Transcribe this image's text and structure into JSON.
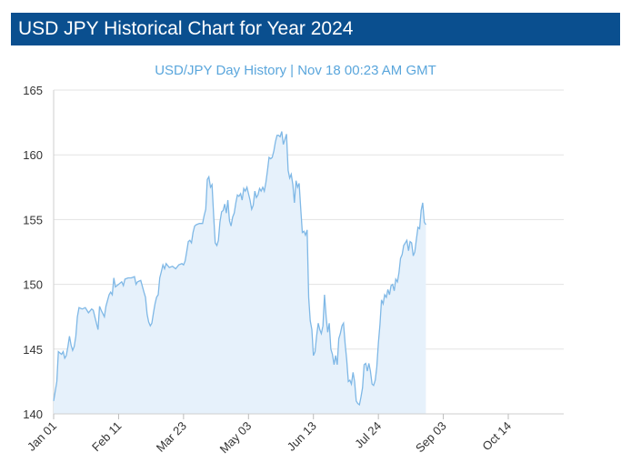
{
  "header": {
    "title": "USD JPY Historical Chart for Year 2024"
  },
  "colors": {
    "header_bg": "#0a4f8f",
    "line": "#7fb8e6",
    "fill": "#e6f1fb",
    "grid": "#e3e3e3",
    "subtitle": "#5aa6dc"
  },
  "chart_data": {
    "type": "area",
    "title": "USD/JPY  Day History | Nov 18 00:23 AM GMT",
    "xlabel": "",
    "ylabel": "",
    "ylim": [
      140,
      165
    ],
    "yticks": [
      140,
      145,
      150,
      155,
      160,
      165
    ],
    "xlim": [
      0,
      322
    ],
    "xticks": [
      {
        "label": "Jan 01",
        "day": 0
      },
      {
        "label": "Feb 11",
        "day": 41
      },
      {
        "label": "Mar 23",
        "day": 82
      },
      {
        "label": "May 03",
        "day": 123
      },
      {
        "label": "Jun 13",
        "day": 164
      },
      {
        "label": "Jul 24",
        "day": 205
      },
      {
        "label": "Sep 03",
        "day": 246
      },
      {
        "label": "Oct 14",
        "day": 287
      }
    ],
    "series": [
      {
        "name": "USD/JPY",
        "points": [
          [
            0,
            141.0
          ],
          [
            2,
            142.5
          ],
          [
            3,
            144.8
          ],
          [
            5,
            144.6
          ],
          [
            6,
            144.8
          ],
          [
            7,
            144.3
          ],
          [
            8,
            144.5
          ],
          [
            9,
            145.2
          ],
          [
            10,
            146.0
          ],
          [
            11,
            145.3
          ],
          [
            12,
            144.9
          ],
          [
            13,
            145.2
          ],
          [
            14,
            146.0
          ],
          [
            15,
            147.5
          ],
          [
            16,
            148.2
          ],
          [
            18,
            148.1
          ],
          [
            20,
            148.2
          ],
          [
            22,
            147.8
          ],
          [
            24,
            148.1
          ],
          [
            25,
            148.0
          ],
          [
            26,
            147.5
          ],
          [
            28,
            146.5
          ],
          [
            29,
            148.3
          ],
          [
            30,
            148.0
          ],
          [
            32,
            147.5
          ],
          [
            33,
            148.3
          ],
          [
            35,
            149.2
          ],
          [
            36,
            149.4
          ],
          [
            37,
            149.2
          ],
          [
            38,
            150.5
          ],
          [
            39,
            149.8
          ],
          [
            41,
            150.0
          ],
          [
            43,
            150.2
          ],
          [
            44,
            149.9
          ],
          [
            45,
            150.4
          ],
          [
            47,
            150.5
          ],
          [
            49,
            150.5
          ],
          [
            51,
            150.6
          ],
          [
            52,
            150.0
          ],
          [
            53,
            150.2
          ],
          [
            55,
            150.3
          ],
          [
            57,
            149.4
          ],
          [
            58,
            149.0
          ],
          [
            59,
            147.7
          ],
          [
            60,
            147.1
          ],
          [
            61,
            146.8
          ],
          [
            62,
            147.0
          ],
          [
            63,
            147.8
          ],
          [
            64,
            148.5
          ],
          [
            65,
            149.0
          ],
          [
            66,
            149.2
          ],
          [
            67,
            150.5
          ],
          [
            68,
            151.0
          ],
          [
            69,
            151.5
          ],
          [
            70,
            151.2
          ],
          [
            71,
            151.6
          ],
          [
            73,
            151.3
          ],
          [
            75,
            151.4
          ],
          [
            77,
            151.2
          ],
          [
            79,
            151.5
          ],
          [
            81,
            151.6
          ],
          [
            82,
            151.5
          ],
          [
            83,
            151.8
          ],
          [
            84,
            152.5
          ],
          [
            85,
            153.3
          ],
          [
            86,
            153.4
          ],
          [
            87,
            153.2
          ],
          [
            88,
            154.0
          ],
          [
            89,
            154.5
          ],
          [
            90,
            154.6
          ],
          [
            92,
            154.7
          ],
          [
            94,
            154.7
          ],
          [
            95,
            155.3
          ],
          [
            96,
            155.8
          ],
          [
            97,
            158.1
          ],
          [
            98,
            158.3
          ],
          [
            99,
            157.5
          ],
          [
            100,
            157.7
          ],
          [
            101,
            155.3
          ],
          [
            102,
            153.2
          ],
          [
            103,
            153.0
          ],
          [
            104,
            153.4
          ],
          [
            105,
            154.8
          ],
          [
            106,
            155.6
          ],
          [
            107,
            155.7
          ],
          [
            108,
            156.2
          ],
          [
            109,
            155.5
          ],
          [
            110,
            156.5
          ],
          [
            111,
            154.9
          ],
          [
            112,
            154.5
          ],
          [
            113,
            155.2
          ],
          [
            114,
            155.5
          ],
          [
            115,
            156.3
          ],
          [
            116,
            156.9
          ],
          [
            117,
            156.8
          ],
          [
            118,
            157.0
          ],
          [
            119,
            156.5
          ],
          [
            120,
            157.4
          ],
          [
            121,
            157.2
          ],
          [
            122,
            157.5
          ],
          [
            123,
            157.0
          ],
          [
            124,
            156.5
          ],
          [
            125,
            155.8
          ],
          [
            126,
            156.1
          ],
          [
            127,
            157.2
          ],
          [
            128,
            156.7
          ],
          [
            129,
            156.9
          ],
          [
            130,
            157.4
          ],
          [
            131,
            157.2
          ],
          [
            132,
            157.5
          ],
          [
            133,
            157.2
          ],
          [
            134,
            157.9
          ],
          [
            135,
            158.8
          ],
          [
            136,
            159.8
          ],
          [
            137,
            159.7
          ],
          [
            138,
            159.8
          ],
          [
            139,
            160.3
          ],
          [
            140,
            161.0
          ],
          [
            141,
            161.5
          ],
          [
            142,
            161.5
          ],
          [
            143,
            161.4
          ],
          [
            144,
            161.8
          ],
          [
            145,
            160.8
          ],
          [
            146,
            161.2
          ],
          [
            147,
            161.6
          ],
          [
            148,
            158.8
          ],
          [
            149,
            158.2
          ],
          [
            150,
            158.5
          ],
          [
            151,
            157.7
          ],
          [
            152,
            156.3
          ],
          [
            153,
            158.0
          ],
          [
            154,
            157.5
          ],
          [
            155,
            157.8
          ],
          [
            156,
            155.8
          ],
          [
            157,
            154.0
          ],
          [
            158,
            154.1
          ],
          [
            159,
            153.8
          ],
          [
            160,
            154.2
          ],
          [
            161,
            149.0
          ],
          [
            162,
            147.2
          ],
          [
            163,
            146.5
          ],
          [
            164,
            144.5
          ],
          [
            165,
            144.8
          ],
          [
            166,
            146.0
          ],
          [
            167,
            147.0
          ],
          [
            168,
            146.5
          ],
          [
            169,
            146.2
          ],
          [
            170,
            146.8
          ],
          [
            171,
            149.2
          ],
          [
            172,
            147.5
          ],
          [
            173,
            146.3
          ],
          [
            174,
            147.0
          ],
          [
            175,
            145.0
          ],
          [
            176,
            144.6
          ],
          [
            177,
            143.8
          ],
          [
            178,
            144.5
          ],
          [
            179,
            143.8
          ],
          [
            180,
            145.8
          ],
          [
            181,
            146.2
          ],
          [
            182,
            146.8
          ],
          [
            183,
            147.0
          ],
          [
            184,
            145.4
          ],
          [
            185,
            144.2
          ],
          [
            186,
            142.5
          ],
          [
            187,
            142.6
          ],
          [
            188,
            142.3
          ],
          [
            189,
            143.2
          ],
          [
            190,
            142.5
          ],
          [
            191,
            141.0
          ],
          [
            192,
            140.8
          ],
          [
            193,
            140.7
          ],
          [
            194,
            141.3
          ],
          [
            195,
            142.0
          ],
          [
            196,
            143.8
          ],
          [
            197,
            143.9
          ],
          [
            198,
            143.3
          ],
          [
            199,
            143.9
          ],
          [
            200,
            143.3
          ],
          [
            201,
            142.3
          ],
          [
            202,
            142.2
          ],
          [
            203,
            142.6
          ],
          [
            204,
            143.6
          ],
          [
            205,
            145.5
          ],
          [
            206,
            146.9
          ],
          [
            207,
            148.8
          ],
          [
            208,
            148.5
          ],
          [
            209,
            149.2
          ],
          [
            210,
            149.0
          ],
          [
            211,
            149.6
          ],
          [
            212,
            149.2
          ],
          [
            213,
            149.9
          ],
          [
            214,
            150.0
          ],
          [
            215,
            149.5
          ],
          [
            216,
            150.4
          ],
          [
            217,
            150.2
          ],
          [
            218,
            150.9
          ],
          [
            219,
            152.0
          ],
          [
            220,
            152.3
          ],
          [
            221,
            153.0
          ],
          [
            222,
            153.2
          ],
          [
            223,
            153.4
          ],
          [
            224,
            152.6
          ],
          [
            225,
            153.3
          ],
          [
            226,
            153.2
          ],
          [
            227,
            152.2
          ],
          [
            228,
            152.5
          ],
          [
            229,
            153.5
          ],
          [
            230,
            154.4
          ],
          [
            231,
            154.3
          ],
          [
            232,
            155.7
          ],
          [
            233,
            156.3
          ],
          [
            234,
            154.8
          ],
          [
            235,
            154.6
          ]
        ]
      }
    ]
  }
}
